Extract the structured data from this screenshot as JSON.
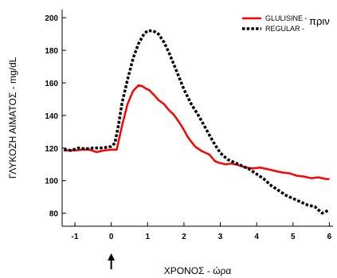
{
  "chart_data": {
    "type": "line",
    "xlabel": "ΧΡΟΝΟΣ - ώρα",
    "ylabel": "ΓΛΥΚΟΖΗ ΑΙΜΑΤΟΣ - mg/dL",
    "xlim": [
      -1.35,
      6.1
    ],
    "ylim": [
      72,
      205
    ],
    "x_ticks": [
      -1,
      0,
      1,
      2,
      3,
      4,
      5,
      6
    ],
    "x_tick_labels": [
      "-1",
      "0",
      "1",
      "2",
      "3",
      "4",
      "5",
      "6"
    ],
    "y_ticks": [
      80,
      100,
      120,
      140,
      160,
      180,
      200
    ],
    "y_tick_labels": [
      "80",
      "100",
      "120",
      "140",
      "160",
      "180",
      "200"
    ],
    "grid": false,
    "legend_position": "top-right",
    "legend_extra_text": "πριν",
    "annotation": {
      "type": "arrow-up",
      "x": 0
    },
    "series": [
      {
        "name": "GLULISINE -",
        "color": "#ff0000",
        "style": "solid",
        "x": [
          -1.3,
          -1.0,
          -0.8,
          -0.6,
          -0.4,
          -0.2,
          0.0,
          0.15,
          0.3,
          0.45,
          0.6,
          0.75,
          0.85,
          0.95,
          1.05,
          1.2,
          1.3,
          1.45,
          1.6,
          1.7,
          1.8,
          1.95,
          2.1,
          2.3,
          2.5,
          2.7,
          2.85,
          2.95,
          3.15,
          3.3,
          3.5,
          3.7,
          3.9,
          4.1,
          4.3,
          4.5,
          4.7,
          4.9,
          5.1,
          5.3,
          5.5,
          5.7,
          5.9,
          6.0
        ],
        "y": [
          118.5,
          118.5,
          119,
          119,
          117.5,
          118.5,
          119,
          119,
          134,
          147,
          155,
          158.5,
          158,
          156.5,
          155.5,
          152,
          149.5,
          147,
          143,
          141,
          138,
          133,
          127,
          121,
          118,
          116,
          112,
          111,
          110,
          110.5,
          109.5,
          108,
          107.5,
          108,
          107,
          106,
          105,
          104.5,
          103,
          102.5,
          101.5,
          102,
          101,
          101
        ]
      },
      {
        "name": "REGULAR -",
        "color": "#000000",
        "style": "dotted",
        "x": [
          -1.3,
          -1.1,
          -0.9,
          -0.7,
          -0.5,
          -0.3,
          -0.1,
          0.0,
          0.1,
          0.2,
          0.3,
          0.45,
          0.6,
          0.75,
          0.9,
          1.0,
          1.15,
          1.3,
          1.45,
          1.6,
          1.8,
          2.0,
          2.2,
          2.4,
          2.6,
          2.8,
          3.0,
          3.2,
          3.4,
          3.6,
          3.8,
          4.0,
          4.2,
          4.4,
          4.6,
          4.8,
          5.0,
          5.2,
          5.4,
          5.6,
          5.8,
          5.9,
          6.0
        ],
        "y": [
          119,
          118.5,
          120,
          119.5,
          120,
          120,
          120.5,
          121,
          123,
          134,
          148,
          162,
          175,
          184,
          190,
          192,
          192,
          190,
          185,
          178,
          167,
          156,
          147,
          140,
          132,
          124,
          117,
          113,
          111,
          109,
          107,
          104,
          101,
          97,
          94,
          91,
          89,
          87,
          85,
          84,
          80,
          81,
          82
        ]
      }
    ]
  }
}
